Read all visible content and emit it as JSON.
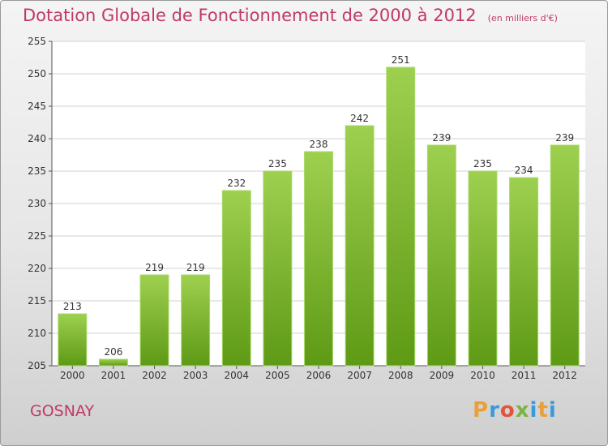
{
  "page": {
    "title": "Dotation Globale de Fonctionnement de 2000 à 2012",
    "unit": "(en milliers d'€)",
    "commune": "GOSNAY",
    "logo": {
      "letters": [
        "P",
        "r",
        "o",
        "x",
        "i",
        "t",
        "i"
      ],
      "colors": [
        "#e8a03a",
        "#3a9ad9",
        "#e2553b",
        "#7cb342",
        "#3a9ad9",
        "#e8a03a",
        "#3a9ad9"
      ]
    }
  },
  "chart_data": {
    "type": "bar",
    "title": "Dotation Globale de Fonctionnement de 2000 à 2012",
    "categories": [
      "2000",
      "2001",
      "2002",
      "2003",
      "2004",
      "2005",
      "2006",
      "2007",
      "2008",
      "2009",
      "2010",
      "2011",
      "2012"
    ],
    "values": [
      213,
      206,
      219,
      219,
      232,
      235,
      238,
      242,
      251,
      239,
      235,
      234,
      239
    ],
    "ylim": [
      205,
      255
    ],
    "yticks": [
      205,
      210,
      215,
      220,
      225,
      230,
      235,
      240,
      245,
      250,
      255
    ],
    "grid": true,
    "bar_color": "#7cb830"
  }
}
